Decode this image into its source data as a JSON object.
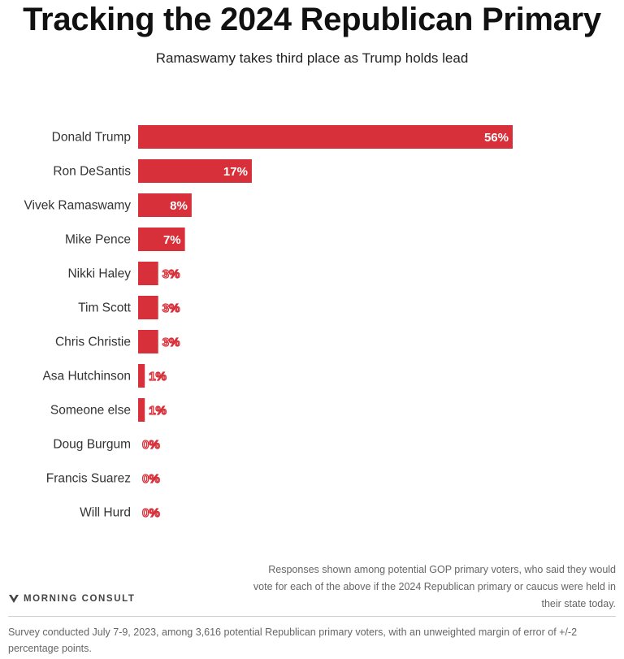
{
  "chart_data": {
    "type": "bar",
    "orientation": "horizontal",
    "title": "Tracking the 2024 Republican Primary",
    "subtitle": "Ramaswamy takes third place as Trump holds lead",
    "categories": [
      "Donald Trump",
      "Ron DeSantis",
      "Vivek Ramaswamy",
      "Mike Pence",
      "Nikki Haley",
      "Tim Scott",
      "Chris Christie",
      "Asa Hutchinson",
      "Someone else",
      "Doug Burgum",
      "Francis Suarez",
      "Will Hurd"
    ],
    "values": [
      56,
      17,
      8,
      7,
      3,
      3,
      3,
      1,
      1,
      0,
      0,
      0
    ],
    "value_labels": [
      "56%",
      "17%",
      "8%",
      "7%",
      "3%",
      "3%",
      "3%",
      "1%",
      "1%",
      "0%",
      "0%",
      "0%"
    ],
    "xlim": [
      0,
      56
    ],
    "grid": false,
    "bar_color": "#d7303a"
  },
  "note": "Responses shown among potential GOP primary voters, who said they would vote for each of the above if the 2024 Republican primary or caucus were held in their state today.",
  "brand": "MORNING CONSULT",
  "footer": "Survey conducted July 7-9, 2023, among 3,616 potential Republican primary voters, with an unweighted margin of error of +/-2 percentage points."
}
